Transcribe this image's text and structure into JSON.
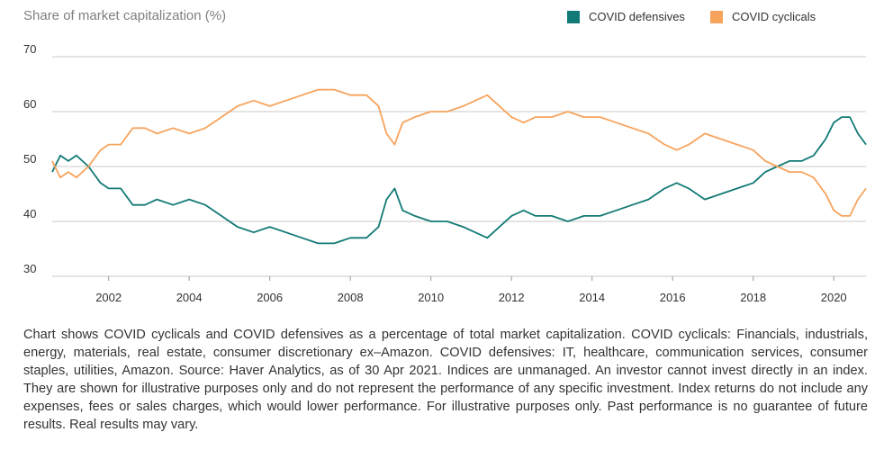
{
  "chart_data": {
    "type": "line",
    "title": "Share of market capitalization (%)",
    "xlabel": "",
    "ylabel": "Share of market capitalization (%)",
    "xlim": [
      2000.6,
      2020.8
    ],
    "ylim": [
      30,
      70
    ],
    "y_ticks": [
      30,
      40,
      50,
      60,
      70
    ],
    "x_ticks": [
      2002,
      2004,
      2006,
      2008,
      2010,
      2012,
      2014,
      2016,
      2018,
      2020
    ],
    "grid": "horizontal",
    "legend_position": "top-right",
    "series": [
      {
        "name": "COVID defensives",
        "color": "#117a76",
        "x": [
          2000.6,
          2000.8,
          2001.0,
          2001.2,
          2001.5,
          2001.8,
          2002.0,
          2002.3,
          2002.6,
          2002.9,
          2003.2,
          2003.6,
          2004.0,
          2004.4,
          2004.8,
          2005.2,
          2005.6,
          2006.0,
          2006.4,
          2006.8,
          2007.2,
          2007.6,
          2008.0,
          2008.4,
          2008.7,
          2008.9,
          2009.1,
          2009.3,
          2009.6,
          2010.0,
          2010.4,
          2010.8,
          2011.1,
          2011.4,
          2011.7,
          2012.0,
          2012.3,
          2012.6,
          2013.0,
          2013.4,
          2013.8,
          2014.2,
          2014.6,
          2015.0,
          2015.4,
          2015.8,
          2016.1,
          2016.4,
          2016.8,
          2017.2,
          2017.6,
          2018.0,
          2018.3,
          2018.6,
          2018.9,
          2019.2,
          2019.5,
          2019.8,
          2020.0,
          2020.2,
          2020.4,
          2020.6,
          2020.8
        ],
        "values": [
          49,
          52,
          51,
          52,
          50,
          47,
          46,
          46,
          43,
          43,
          44,
          43,
          44,
          43,
          41,
          39,
          38,
          39,
          38,
          37,
          36,
          36,
          37,
          37,
          39,
          44,
          46,
          42,
          41,
          40,
          40,
          39,
          38,
          37,
          39,
          41,
          42,
          41,
          41,
          40,
          41,
          41,
          42,
          43,
          44,
          46,
          47,
          46,
          44,
          45,
          46,
          47,
          49,
          50,
          51,
          51,
          52,
          55,
          58,
          59,
          59,
          56,
          54
        ]
      },
      {
        "name": "COVID cyclicals",
        "color": "#f7a35c",
        "x": [
          2000.6,
          2000.8,
          2001.0,
          2001.2,
          2001.5,
          2001.8,
          2002.0,
          2002.3,
          2002.6,
          2002.9,
          2003.2,
          2003.6,
          2004.0,
          2004.4,
          2004.8,
          2005.2,
          2005.6,
          2006.0,
          2006.4,
          2006.8,
          2007.2,
          2007.6,
          2008.0,
          2008.4,
          2008.7,
          2008.9,
          2009.1,
          2009.3,
          2009.6,
          2010.0,
          2010.4,
          2010.8,
          2011.1,
          2011.4,
          2011.7,
          2012.0,
          2012.3,
          2012.6,
          2013.0,
          2013.4,
          2013.8,
          2014.2,
          2014.6,
          2015.0,
          2015.4,
          2015.8,
          2016.1,
          2016.4,
          2016.8,
          2017.2,
          2017.6,
          2018.0,
          2018.3,
          2018.6,
          2018.9,
          2019.2,
          2019.5,
          2019.8,
          2020.0,
          2020.2,
          2020.4,
          2020.6,
          2020.8
        ],
        "values": [
          51,
          48,
          49,
          48,
          50,
          53,
          54,
          54,
          57,
          57,
          56,
          57,
          56,
          57,
          59,
          61,
          62,
          61,
          62,
          63,
          64,
          64,
          63,
          63,
          61,
          56,
          54,
          58,
          59,
          60,
          60,
          61,
          62,
          63,
          61,
          59,
          58,
          59,
          59,
          60,
          59,
          59,
          58,
          57,
          56,
          54,
          53,
          54,
          56,
          55,
          54,
          53,
          51,
          50,
          49,
          49,
          48,
          45,
          42,
          41,
          41,
          44,
          46
        ]
      }
    ]
  },
  "footnote": "Chart shows COVID cyclicals and COVID defensives as a percentage of total market capitalization. COVID cyclicals: Financials, industrials, energy, materials, real estate, consumer discretionary ex–Amazon. COVID defensives: IT, healthcare, communication services, consumer staples, utilities, Amazon. Source: Haver Analytics, as of 30 Apr 2021. Indices are unmanaged. An investor cannot invest directly in an index. They are shown for illustrative purposes only and do not represent the performance of any specific investment. Index returns do not include any expenses, fees or sales charges, which would lower performance. For illustrative purposes only. Past performance is no guarantee of future results. Real results may vary."
}
